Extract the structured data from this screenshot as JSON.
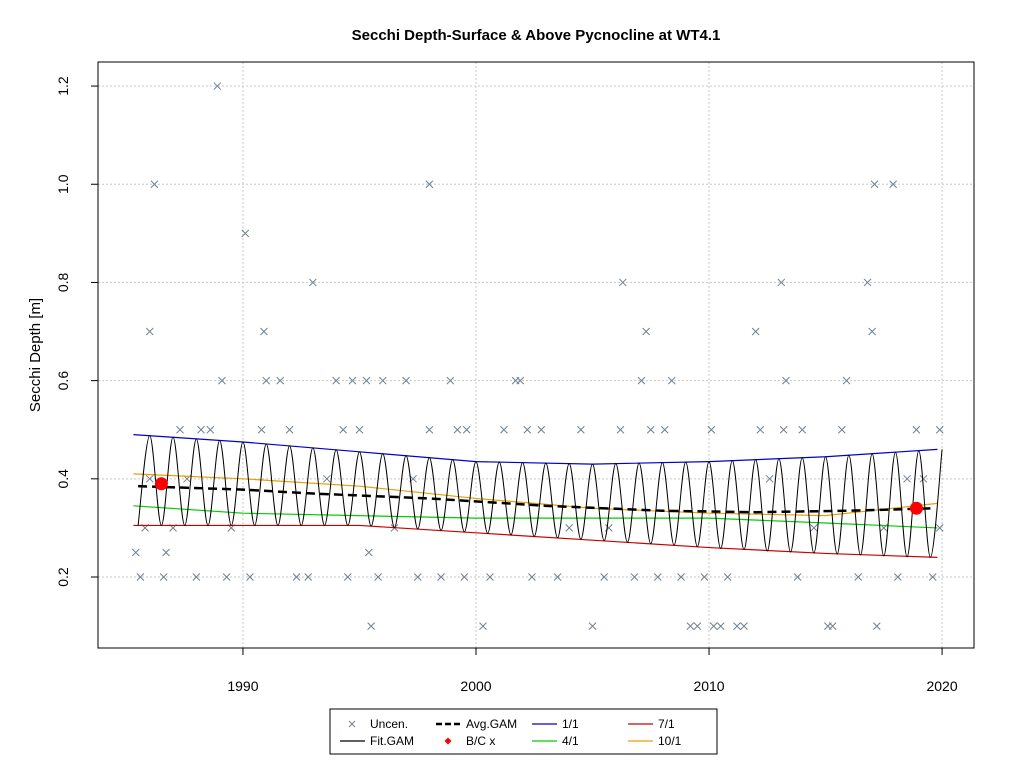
{
  "chart_data": {
    "type": "scatter-line",
    "title": "Secchi Depth-Surface & Above Pycnocline at WT4.1",
    "y_label": "Secchi Depth [m]",
    "xlim": [
      1983.78,
      2021.37
    ],
    "ylim": [
      0.0554,
      1.249
    ],
    "xticks": [
      1990,
      2000,
      2010,
      2020
    ],
    "yticks": [
      0.2,
      0.4,
      0.6,
      0.8,
      {
        "value": 1.0,
        "label": "1.0"
      },
      1.2
    ],
    "grid": true,
    "series": [
      {
        "name": "Uncen.",
        "color": "#708090",
        "style": "x",
        "x": [
          1985.4,
          1985.6,
          1985.8,
          1986.0,
          1986.0,
          1986.2,
          1986.6,
          1986.7,
          1987.0,
          1987.3,
          1987.6,
          1988.0,
          1988.2,
          1988.6,
          1988.9,
          1989.1,
          1989.3,
          1989.5,
          1990.1,
          1990.3,
          1990.8,
          1990.9,
          1991.0,
          1991.6,
          1992.0,
          1992.3,
          1992.8,
          1993.0,
          1993.6,
          1994.0,
          1994.3,
          1994.5,
          1994.7,
          1995.0,
          1995.3,
          1995.4,
          1995.5,
          1995.8,
          1996.0,
          1996.5,
          1997.0,
          1997.3,
          1997.5,
          1998.0,
          1998.0,
          1998.5,
          1998.9,
          1999.2,
          1999.6,
          1999.5,
          2000.3,
          2000.6,
          2001.2,
          2001.7,
          2001.9,
          2002.2,
          2002.4,
          2002.8,
          2003.5,
          2004.0,
          2004.5,
          2005.0,
          2005.5,
          2005.7,
          2006.2,
          2006.3,
          2006.8,
          2007.1,
          2007.3,
          2007.5,
          2007.8,
          2008.1,
          2008.4,
          2008.8,
          2009.2,
          2009.5,
          2009.8,
          2010.1,
          2010.2,
          2010.5,
          2010.8,
          2011.2,
          2011.5,
          2012.0,
          2012.2,
          2012.6,
          2013.1,
          2013.2,
          2013.3,
          2013.8,
          2014.0,
          2014.5,
          2015.1,
          2015.3,
          2015.7,
          2015.9,
          2016.4,
          2016.8,
          2017.0,
          2017.1,
          2017.2,
          2017.5,
          2017.9,
          2018.1,
          2018.5,
          2018.9,
          2019.2,
          2019.6,
          2019.9,
          2019.9
        ],
        "values": [
          0.25,
          0.2,
          0.3,
          0.4,
          0.7,
          1.0,
          0.2,
          0.25,
          0.3,
          0.5,
          0.4,
          0.2,
          0.5,
          0.5,
          1.2,
          0.6,
          0.2,
          0.3,
          0.9,
          0.2,
          0.5,
          0.7,
          0.6,
          0.6,
          0.5,
          0.2,
          0.2,
          0.8,
          0.4,
          0.6,
          0.5,
          0.2,
          0.6,
          0.5,
          0.6,
          0.25,
          0.1,
          0.2,
          0.6,
          0.3,
          0.6,
          0.4,
          0.2,
          1.0,
          0.5,
          0.2,
          0.6,
          0.5,
          0.5,
          0.2,
          0.1,
          0.2,
          0.5,
          0.6,
          0.6,
          0.5,
          0.2,
          0.5,
          0.2,
          0.3,
          0.5,
          0.1,
          0.2,
          0.3,
          0.5,
          0.8,
          0.2,
          0.6,
          0.7,
          0.5,
          0.2,
          0.5,
          0.6,
          0.2,
          0.1,
          0.1,
          0.2,
          0.5,
          0.1,
          0.1,
          0.2,
          0.1,
          0.1,
          0.7,
          0.5,
          0.4,
          0.8,
          0.5,
          0.6,
          0.2,
          0.5,
          0.3,
          0.1,
          0.1,
          0.5,
          0.6,
          0.2,
          0.8,
          0.7,
          1.0,
          0.1,
          0.3,
          1.0,
          0.2,
          0.4,
          0.5,
          0.4,
          0.2,
          0.5,
          0.3
        ]
      },
      {
        "name": "Fit.GAM",
        "color": "#000000",
        "style": "smooth",
        "x": [
          1985.5,
          1986,
          1986.5,
          1987,
          1987.5,
          1988,
          1988.5,
          1989,
          1989.5,
          1990,
          1990.5,
          1991,
          1991.5,
          1992,
          1992.5,
          1993,
          1993.5,
          1994,
          1994.5,
          1995,
          1995.5,
          1996,
          1996.5,
          1997,
          1997.5,
          1998,
          1998.5,
          1999,
          1999.5,
          2000,
          2000.5,
          2001,
          2001.5,
          2002,
          2002.5,
          2003,
          2003.5,
          2004,
          2004.5,
          2005,
          2005.5,
          2006,
          2006.5,
          2007,
          2007.5,
          2008,
          2008.5,
          2009,
          2009.5,
          2010,
          2010.5,
          2011,
          2011.5,
          2012,
          2012.5,
          2013,
          2013.5,
          2014,
          2014.5,
          2015,
          2015.5,
          2016,
          2016.5,
          2017,
          2017.5,
          2018,
          2018.5,
          2019,
          2019.5,
          2020
        ],
        "values": [
          0.305,
          0.488,
          0.305,
          0.485,
          0.305,
          0.481,
          0.305,
          0.478,
          0.305,
          0.475,
          0.305,
          0.471,
          0.305,
          0.467,
          0.305,
          0.463,
          0.305,
          0.459,
          0.305,
          0.455,
          0.304,
          0.451,
          0.301,
          0.447,
          0.298,
          0.443,
          0.295,
          0.439,
          0.292,
          0.435,
          0.289,
          0.434,
          0.286,
          0.433,
          0.283,
          0.432,
          0.28,
          0.431,
          0.277,
          0.43,
          0.274,
          0.431,
          0.271,
          0.432,
          0.268,
          0.433,
          0.265,
          0.434,
          0.262,
          0.435,
          0.258,
          0.437,
          0.256,
          0.439,
          0.253,
          0.441,
          0.251,
          0.443,
          0.249,
          0.445,
          0.247,
          0.448,
          0.245,
          0.451,
          0.243,
          0.454,
          0.241,
          0.457,
          0.24,
          0.46
        ]
      },
      {
        "name": "Avg.GAM",
        "color": "#000000",
        "style": "dash",
        "x": [
          1985.5,
          1990,
          1993,
          1998,
          2003,
          2008,
          2012,
          2016,
          2019.7
        ],
        "values": [
          0.385,
          0.378,
          0.37,
          0.36,
          0.345,
          0.335,
          0.332,
          0.335,
          0.34
        ]
      },
      {
        "name": "B/C x",
        "color": "#ff0000",
        "style": "dot",
        "x": [
          1986.5,
          2018.9
        ],
        "values": [
          0.39,
          0.34
        ]
      },
      {
        "name": "1/1",
        "color": "#0000cd",
        "style": "line",
        "x": [
          1985.3,
          1990,
          1995,
          2000,
          2005,
          2010,
          2015,
          2019.8
        ],
        "values": [
          0.49,
          0.475,
          0.455,
          0.435,
          0.43,
          0.435,
          0.445,
          0.46
        ]
      },
      {
        "name": "4/1",
        "color": "#00cc00",
        "style": "line",
        "x": [
          1985.3,
          1990,
          2000,
          2010,
          2015,
          2019.8
        ],
        "values": [
          0.345,
          0.33,
          0.32,
          0.32,
          0.31,
          0.3
        ]
      },
      {
        "name": "7/1",
        "color": "#cc0000",
        "style": "line",
        "x": [
          1985.3,
          1995,
          2000,
          2005,
          2010,
          2015,
          2019.8
        ],
        "values": [
          0.305,
          0.305,
          0.29,
          0.275,
          0.26,
          0.248,
          0.24
        ]
      },
      {
        "name": "10/1",
        "color": "#e6a000",
        "style": "line",
        "x": [
          1985.3,
          1990,
          1995,
          2000,
          2005,
          2010,
          2015,
          2019.8
        ],
        "values": [
          0.41,
          0.4,
          0.385,
          0.36,
          0.34,
          0.33,
          0.325,
          0.35
        ]
      }
    ]
  }
}
